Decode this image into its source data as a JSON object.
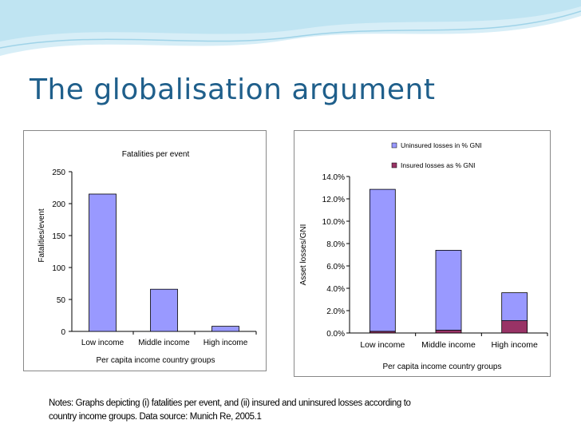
{
  "slide": {
    "title": "The globalisation argument",
    "notes_line1": "Notes: Graphs depicting (i) fatalities per event, and (ii) insured and uninsured losses according to",
    "notes_line2": "country income groups. Data source: Munich Re, 2005.1"
  },
  "colors": {
    "title": "#1f5f8b",
    "uninsured_bar": "#9999ff",
    "insured_bar": "#993366",
    "wave": "#bfe4f2"
  },
  "chart_data": [
    {
      "type": "bar",
      "title": "Fatalities per event",
      "xlabel": "Per capita income country groups",
      "ylabel": "Fatalities/event",
      "categories": [
        "Low income",
        "Middle income",
        "High income"
      ],
      "values": [
        215,
        66,
        8
      ],
      "ylim": [
        0,
        250
      ],
      "yticks": [
        "0",
        "50",
        "100",
        "150",
        "200",
        "250"
      ],
      "grid": false,
      "legend": "none"
    },
    {
      "type": "bar",
      "stacked": true,
      "xlabel": "Per capita income country groups",
      "ylabel": "Asset losses/GNI",
      "categories": [
        "Low income",
        "Middle income",
        "High income"
      ],
      "ylim": [
        0,
        14
      ],
      "yticks": [
        "0.0%",
        "2.0%",
        "4.0%",
        "6.0%",
        "8.0%",
        "10.0%",
        "12.0%",
        "14.0%"
      ],
      "legend": "top-right",
      "series": [
        {
          "name": "Insured  losses as % GNI",
          "values": [
            0.15,
            0.25,
            1.1
          ],
          "color": "#993366"
        },
        {
          "name": "Uninsured losses in % GNI",
          "values": [
            12.7,
            7.15,
            2.5
          ],
          "color": "#9999ff"
        }
      ]
    }
  ]
}
